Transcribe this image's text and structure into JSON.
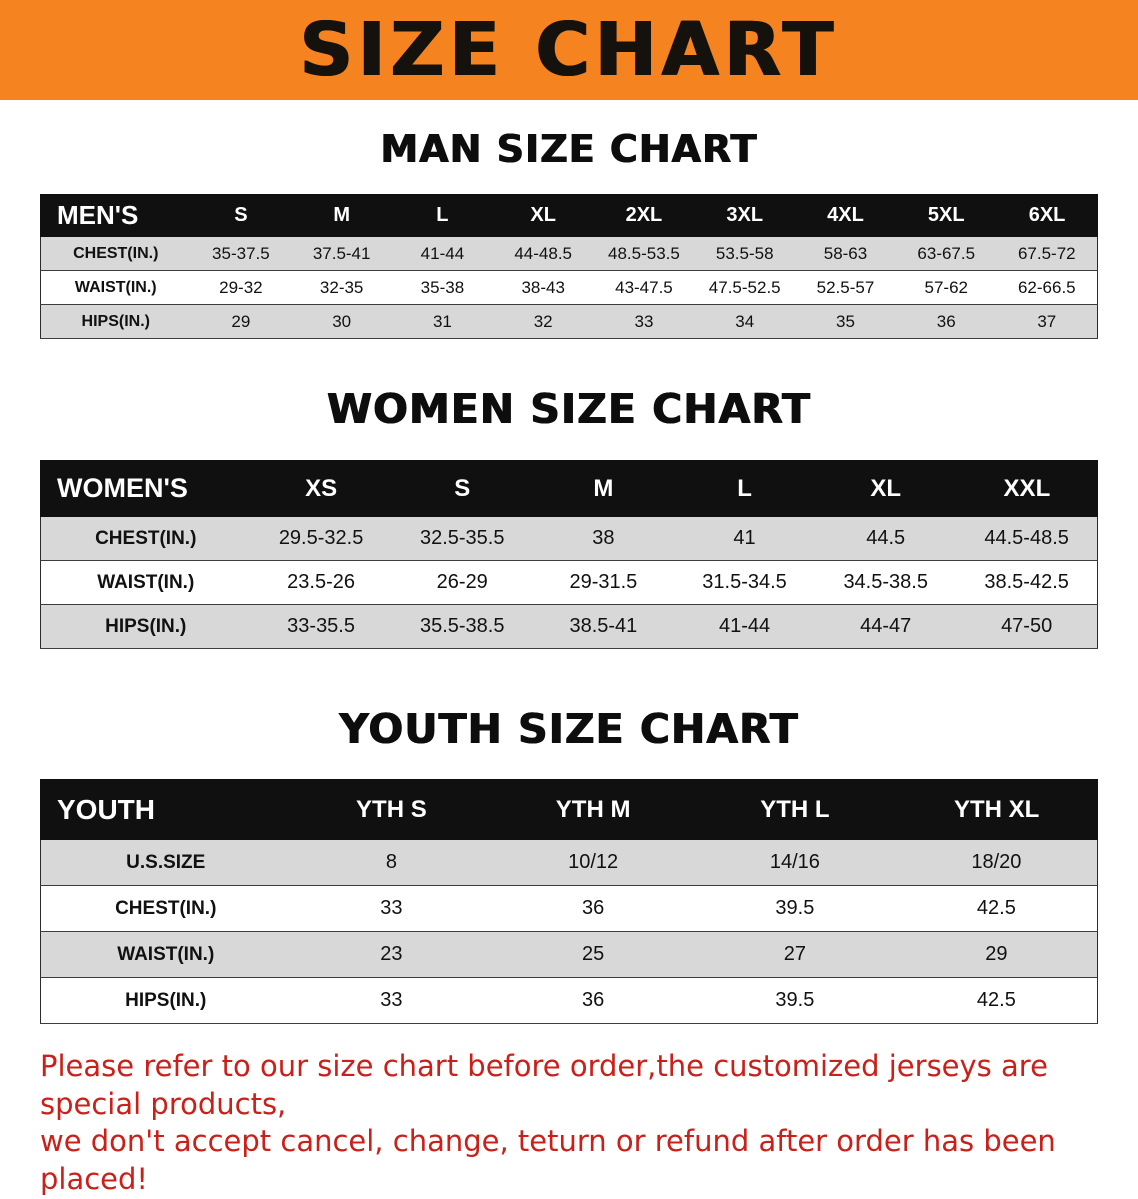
{
  "banner": {
    "title": "SIZE CHART"
  },
  "sections": [
    {
      "name": "men",
      "heading": "MAN SIZE CHART",
      "header": [
        "MEN'S",
        "S",
        "M",
        "L",
        "XL",
        "2XL",
        "3XL",
        "4XL",
        "5XL",
        "6XL"
      ],
      "rows": [
        [
          "CHEST(IN.)",
          "35-37.5",
          "37.5-41",
          "41-44",
          "44-48.5",
          "48.5-53.5",
          "53.5-58",
          "58-63",
          "63-67.5",
          "67.5-72"
        ],
        [
          "WAIST(IN.)",
          "29-32",
          "32-35",
          "35-38",
          "38-43",
          "43-47.5",
          "47.5-52.5",
          "52.5-57",
          "57-62",
          "62-66.5"
        ],
        [
          "HIPS(IN.)",
          "29",
          "30",
          "31",
          "32",
          "33",
          "34",
          "35",
          "36",
          "37"
        ]
      ]
    },
    {
      "name": "women",
      "heading": "WOMEN SIZE CHART",
      "header": [
        "WOMEN'S",
        "XS",
        "S",
        "M",
        "L",
        "XL",
        "XXL"
      ],
      "rows": [
        [
          "CHEST(IN.)",
          "29.5-32.5",
          "32.5-35.5",
          "38",
          "41",
          "44.5",
          "44.5-48.5"
        ],
        [
          "WAIST(IN.)",
          "23.5-26",
          "26-29",
          "29-31.5",
          "31.5-34.5",
          "34.5-38.5",
          "38.5-42.5"
        ],
        [
          "HIPS(IN.)",
          "33-35.5",
          "35.5-38.5",
          "38.5-41",
          "41-44",
          "44-47",
          "47-50"
        ]
      ]
    },
    {
      "name": "youth",
      "heading": "YOUTH SIZE CHART",
      "header": [
        "YOUTH",
        "YTH S",
        "YTH M",
        "YTH L",
        "YTH XL"
      ],
      "rows": [
        [
          "U.S.SIZE",
          "8",
          "10/12",
          "14/16",
          "18/20"
        ],
        [
          "CHEST(IN.)",
          "33",
          "36",
          "39.5",
          "42.5"
        ],
        [
          "WAIST(IN.)",
          "23",
          "25",
          "27",
          "29"
        ],
        [
          "HIPS(IN.)",
          "33",
          "36",
          "39.5",
          "42.5"
        ]
      ]
    }
  ],
  "disclaimer": {
    "line1": "Please refer to our size chart before order,the customized jerseys are special products,",
    "line2": "we don't accept cancel, change, teturn or refund after order has been placed!"
  },
  "colors": {
    "banner_orange": "#f5831f",
    "header_black": "#101010",
    "row_gray": "#d8d8d8",
    "disclaimer_red": "#c9201a"
  }
}
